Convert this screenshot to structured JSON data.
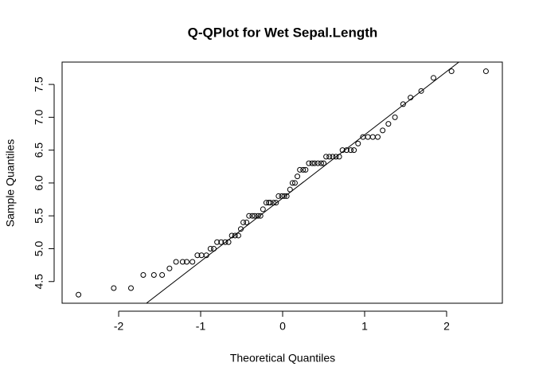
{
  "chart_data": {
    "type": "scatter",
    "title": "Q-QPlot for Wet Sepal.Length",
    "xlabel": "Theoretical Quantiles",
    "ylabel": "Sample Quantiles",
    "xlim": [
      -2.69,
      2.68
    ],
    "ylim": [
      4.17,
      7.84
    ],
    "xticks": [
      -2,
      -1,
      0,
      1,
      2
    ],
    "yticks": [
      4.5,
      {
        "value": 5,
        "label": "5.0"
      },
      5.5,
      {
        "value": 6,
        "label": "6.0"
      },
      6.5,
      {
        "value": 7,
        "label": "7.0"
      },
      7.5
    ],
    "color": "#000000",
    "x": [
      -2.49,
      -2.06,
      -1.85,
      -1.7,
      -1.57,
      -1.47,
      -1.38,
      -1.3,
      -1.22,
      -1.17,
      -1.1,
      -1.04,
      -0.99,
      -0.93,
      -0.88,
      -0.84,
      -0.8,
      -0.75,
      -0.7,
      -0.66,
      -0.62,
      -0.58,
      -0.54,
      -0.51,
      -0.48,
      -0.44,
      -0.41,
      -0.37,
      -0.34,
      -0.3,
      -0.27,
      -0.24,
      -0.2,
      -0.17,
      -0.15,
      -0.11,
      -0.08,
      -0.05,
      -0.01,
      0.02,
      0.05,
      0.09,
      0.12,
      0.15,
      0.18,
      0.21,
      0.25,
      0.28,
      0.32,
      0.36,
      0.39,
      0.43,
      0.47,
      0.5,
      0.53,
      0.57,
      0.61,
      0.65,
      0.69,
      0.73,
      0.78,
      0.83,
      0.87,
      0.92,
      0.98,
      1.04,
      1.1,
      1.16,
      1.22,
      1.29,
      1.37,
      1.47,
      1.56,
      1.69,
      1.84,
      2.06,
      2.48
    ],
    "values": [
      4.3,
      4.4,
      4.4,
      4.6,
      4.6,
      4.6,
      4.7,
      4.8,
      4.8,
      4.8,
      4.8,
      4.9,
      4.9,
      4.9,
      5.0,
      5.0,
      5.1,
      5.1,
      5.1,
      5.1,
      5.2,
      5.2,
      5.2,
      5.3,
      5.4,
      5.4,
      5.5,
      5.5,
      5.5,
      5.5,
      5.5,
      5.6,
      5.7,
      5.7,
      5.7,
      5.7,
      5.7,
      5.8,
      5.8,
      5.8,
      5.8,
      5.9,
      6.0,
      6.0,
      6.1,
      6.2,
      6.2,
      6.2,
      6.3,
      6.3,
      6.3,
      6.3,
      6.3,
      6.3,
      6.4,
      6.4,
      6.4,
      6.4,
      6.4,
      6.5,
      6.5,
      6.5,
      6.5,
      6.6,
      6.7,
      6.7,
      6.7,
      6.7,
      6.8,
      6.9,
      7.0,
      7.2,
      7.3,
      7.4,
      7.6,
      7.7,
      7.7
    ],
    "qqline": {
      "intercept": 5.77,
      "slope": 0.963
    }
  }
}
